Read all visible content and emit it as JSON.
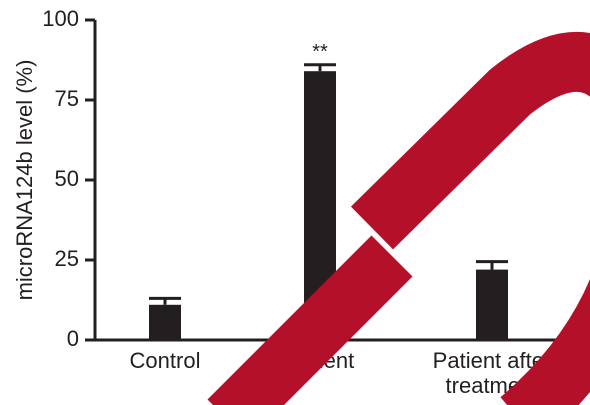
{
  "chart_data": {
    "type": "bar",
    "ylabel": "microRNA124b level (%)",
    "categories": [
      "Control",
      "Patient",
      "Patient after treatment"
    ],
    "values": [
      11,
      84,
      22
    ],
    "errors": [
      2,
      2,
      2.5
    ],
    "significance": [
      null,
      "**",
      null
    ],
    "color": "#231f20",
    "ylim": [
      0,
      100
    ],
    "yticks": [
      0,
      25,
      50,
      75,
      100
    ],
    "grid": false
  }
}
